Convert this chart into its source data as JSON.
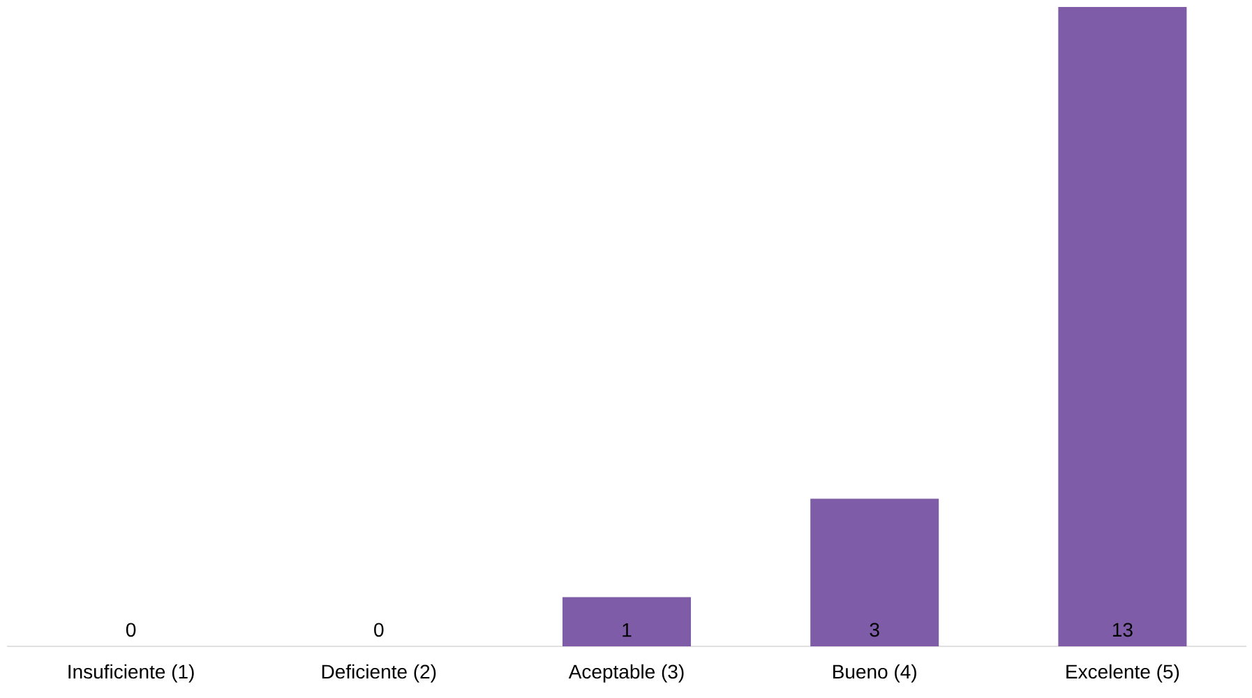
{
  "chart_data": {
    "type": "bar",
    "categories": [
      "Insuficiente (1)",
      "Deficiente (2)",
      "Aceptable (3)",
      "Bueno (4)",
      "Excelente (5)"
    ],
    "values": [
      0,
      0,
      1,
      3,
      13
    ],
    "color": "#7e5ca8",
    "data_labels": true
  }
}
